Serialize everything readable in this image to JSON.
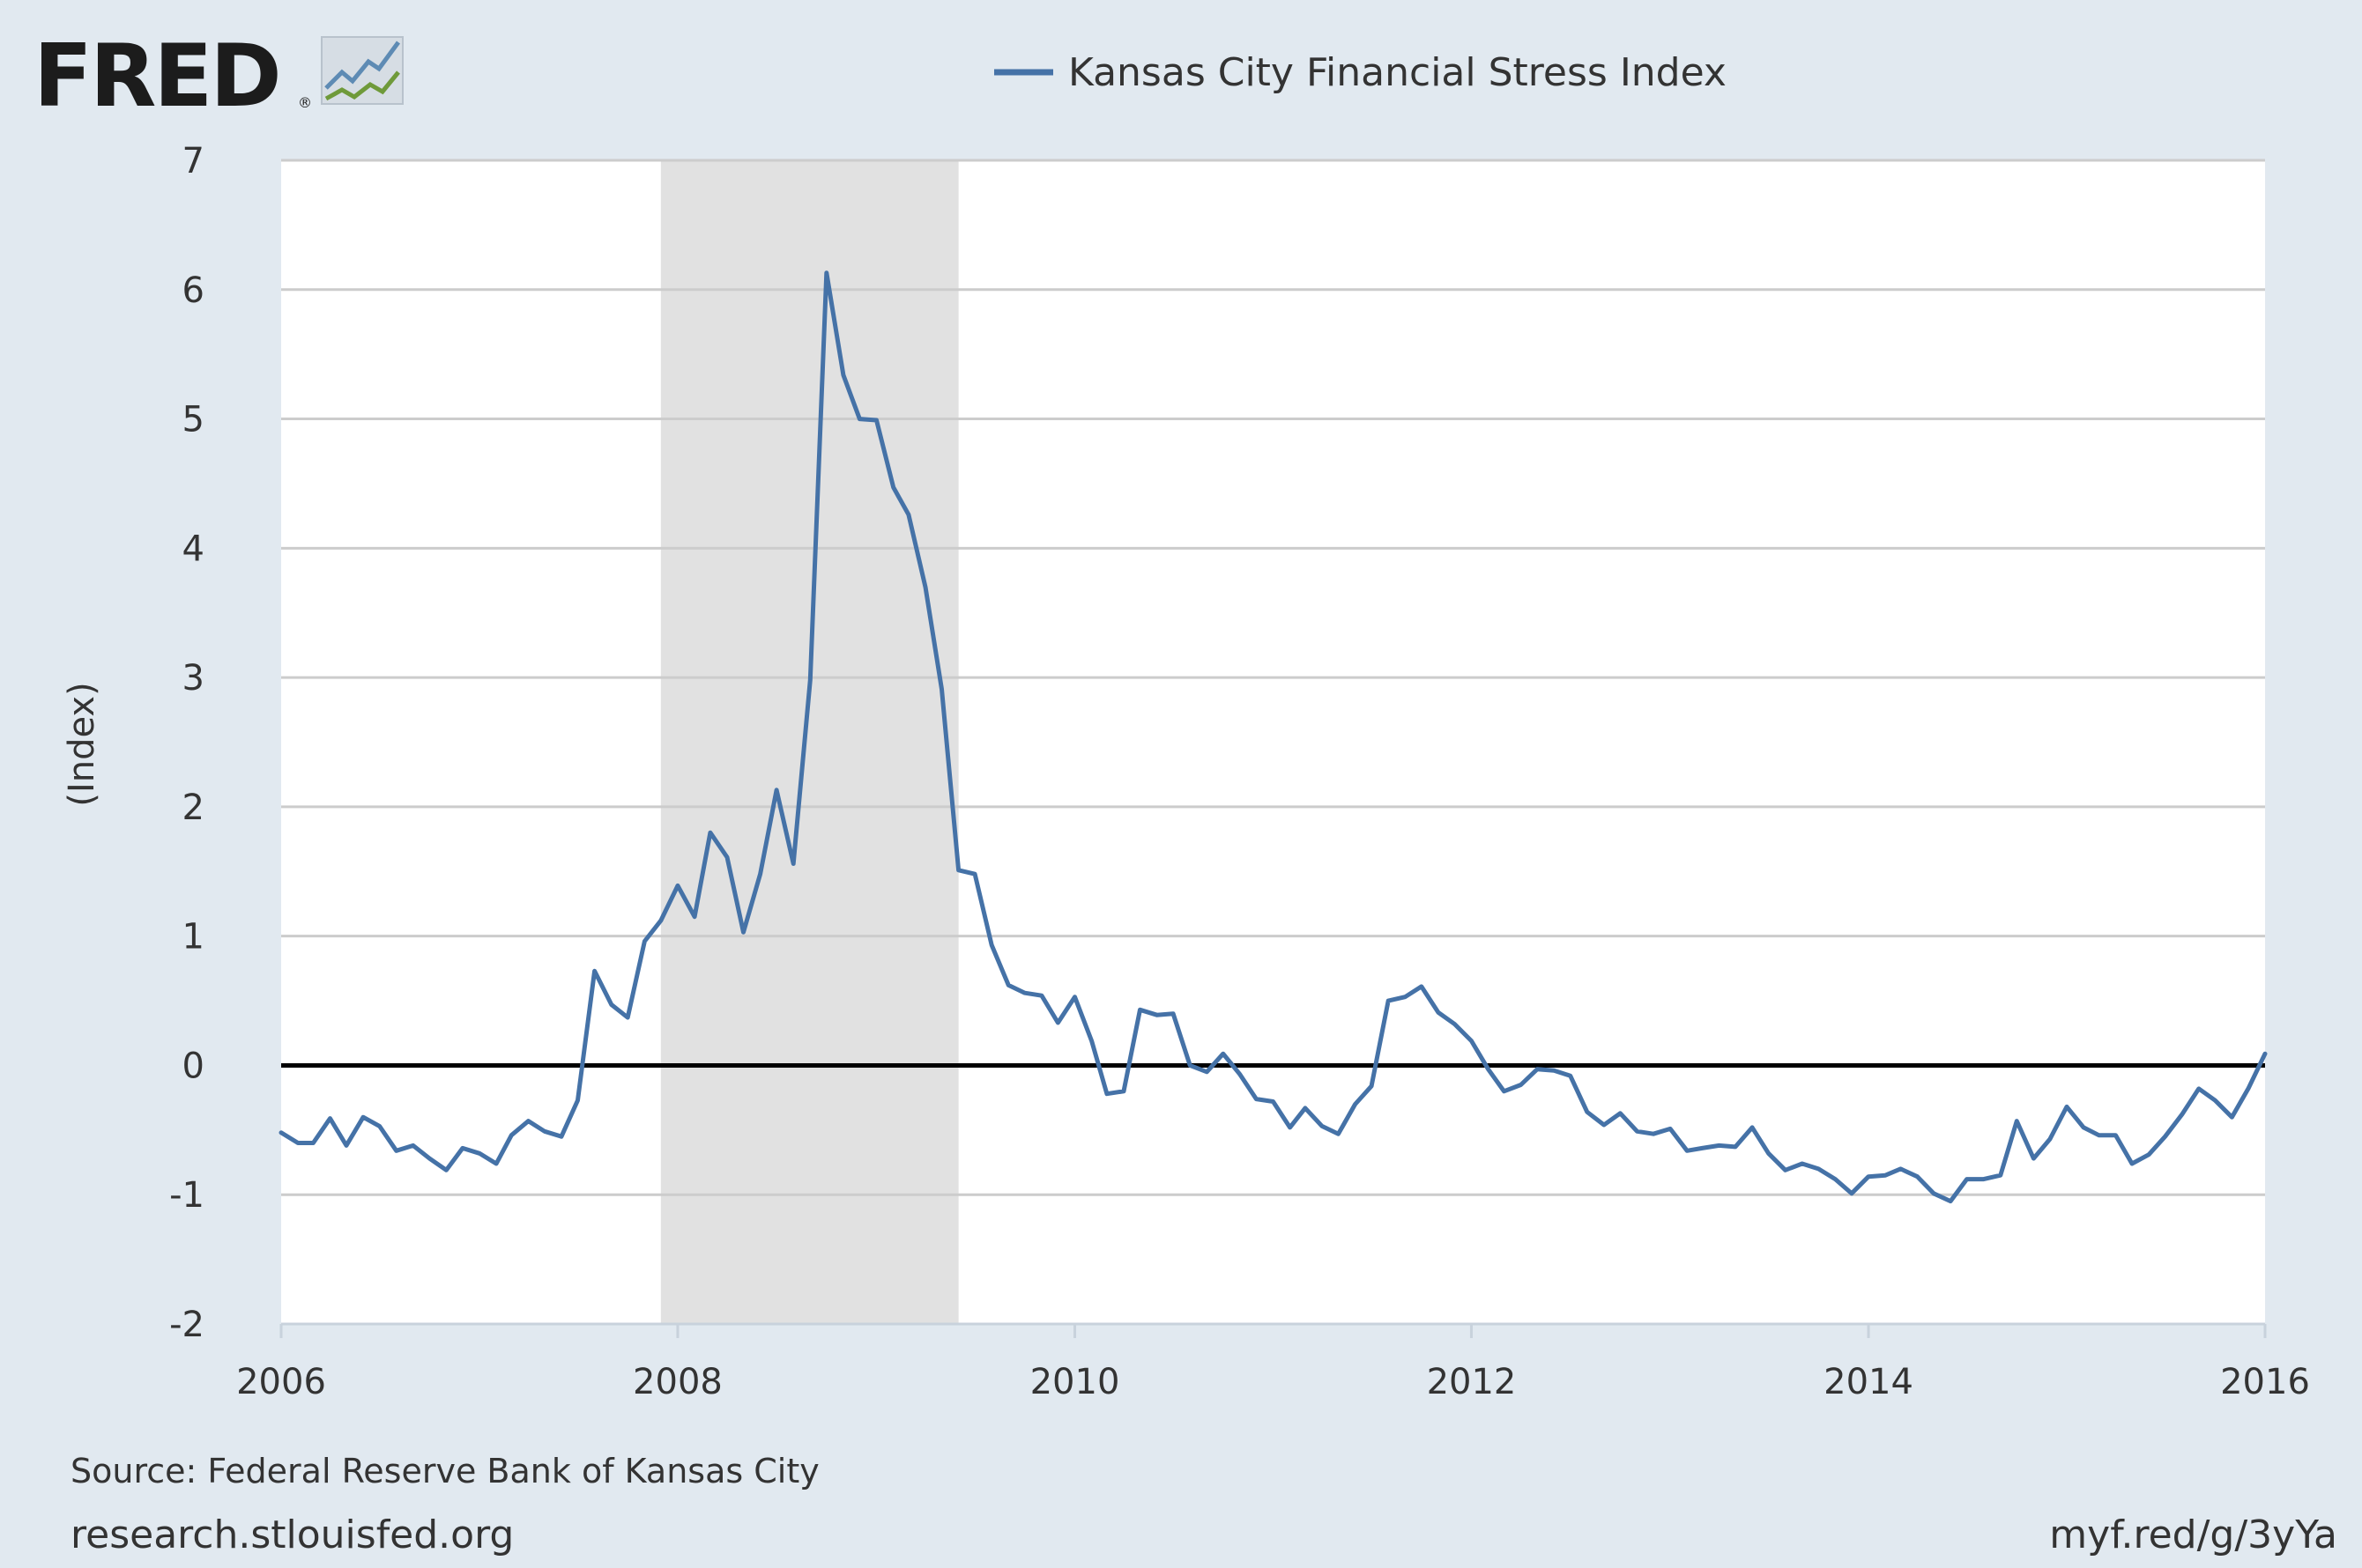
{
  "branding": {
    "logo_text": "FRED",
    "logo_mark": "®"
  },
  "legend": {
    "series_name": "Kansas City Financial Stress Index"
  },
  "footer": {
    "source": "Source: Federal Reserve Bank of Kansas City",
    "site": "research.stlouisfed.org",
    "short_link": "myf.red/g/3yYa"
  },
  "colors": {
    "background": "#e1e9f0",
    "plot_background": "#ffffff",
    "series": "#4572a7",
    "recession": "#e1e1e1",
    "grid": "#cccccc",
    "zero_line": "#000000",
    "logo_line_blue": "#5e8bb4",
    "logo_line_green": "#6f9a3a"
  },
  "chart_data": {
    "type": "line",
    "title": "",
    "xlabel": "",
    "ylabel": "(Index)",
    "xlim": [
      "2006-01-01",
      "2016-01-01"
    ],
    "ylim": [
      -2,
      7
    ],
    "x_ticks": [
      "2006",
      "2008",
      "2010",
      "2012",
      "2014",
      "2016"
    ],
    "y_ticks": [
      "-2",
      "-1",
      "0",
      "1",
      "2",
      "3",
      "4",
      "5",
      "6",
      "7"
    ],
    "grid": true,
    "legend_position": "top-center",
    "recession_band": {
      "start": "2007-12-01",
      "end": "2009-06-01"
    },
    "reference_line": {
      "y": 0
    },
    "series": [
      {
        "name": "Kansas City Financial Stress Index",
        "color": "#4572a7",
        "x": [
          "2006-01",
          "2006-02",
          "2006-03",
          "2006-04",
          "2006-05",
          "2006-06",
          "2006-07",
          "2006-08",
          "2006-09",
          "2006-10",
          "2006-11",
          "2006-12",
          "2007-01",
          "2007-02",
          "2007-03",
          "2007-04",
          "2007-05",
          "2007-06",
          "2007-07",
          "2007-08",
          "2007-09",
          "2007-10",
          "2007-11",
          "2007-12",
          "2008-01",
          "2008-02",
          "2008-03",
          "2008-04",
          "2008-05",
          "2008-06",
          "2008-07",
          "2008-08",
          "2008-09",
          "2008-10",
          "2008-11",
          "2008-12",
          "2009-01",
          "2009-02",
          "2009-03",
          "2009-04",
          "2009-05",
          "2009-06",
          "2009-07",
          "2009-08",
          "2009-09",
          "2009-10",
          "2009-11",
          "2009-12",
          "2010-01",
          "2010-02",
          "2010-03",
          "2010-04",
          "2010-05",
          "2010-06",
          "2010-07",
          "2010-08",
          "2010-09",
          "2010-10",
          "2010-11",
          "2010-12",
          "2011-01",
          "2011-02",
          "2011-03",
          "2011-04",
          "2011-05",
          "2011-06",
          "2011-07",
          "2011-08",
          "2011-09",
          "2011-10",
          "2011-11",
          "2011-12",
          "2012-01",
          "2012-02",
          "2012-03",
          "2012-04",
          "2012-05",
          "2012-06",
          "2012-07",
          "2012-08",
          "2012-09",
          "2012-10",
          "2012-11",
          "2012-12",
          "2013-01",
          "2013-02",
          "2013-03",
          "2013-04",
          "2013-05",
          "2013-06",
          "2013-07",
          "2013-08",
          "2013-09",
          "2013-10",
          "2013-11",
          "2013-12",
          "2014-01",
          "2014-02",
          "2014-03",
          "2014-04",
          "2014-05",
          "2014-06",
          "2014-07",
          "2014-08",
          "2014-09",
          "2014-10",
          "2014-11",
          "2014-12",
          "2015-01",
          "2015-02",
          "2015-03",
          "2015-04",
          "2015-05",
          "2015-06",
          "2015-07",
          "2015-08",
          "2015-09",
          "2015-10",
          "2015-11",
          "2015-12",
          "2016-01"
        ],
        "values": [
          -0.52,
          -0.6,
          -0.6,
          -0.41,
          -0.62,
          -0.4,
          -0.47,
          -0.66,
          -0.62,
          -0.72,
          -0.81,
          -0.64,
          -0.68,
          -0.76,
          -0.54,
          -0.43,
          -0.51,
          -0.55,
          -0.27,
          0.73,
          0.47,
          0.37,
          0.96,
          1.12,
          1.39,
          1.15,
          1.8,
          1.61,
          1.03,
          1.48,
          2.13,
          1.56,
          2.98,
          6.13,
          5.34,
          5.0,
          4.99,
          4.47,
          4.26,
          3.7,
          2.91,
          1.51,
          1.48,
          0.93,
          0.62,
          0.56,
          0.54,
          0.33,
          0.53,
          0.19,
          -0.22,
          -0.2,
          0.43,
          0.39,
          0.4,
          0.0,
          -0.05,
          0.09,
          -0.07,
          -0.26,
          -0.28,
          -0.48,
          -0.33,
          -0.47,
          -0.53,
          -0.3,
          -0.16,
          0.5,
          0.53,
          0.61,
          0.41,
          0.32,
          0.19,
          -0.03,
          -0.2,
          -0.15,
          -0.03,
          -0.04,
          -0.08,
          -0.36,
          -0.46,
          -0.37,
          -0.51,
          -0.53,
          -0.49,
          -0.66,
          -0.64,
          -0.62,
          -0.63,
          -0.48,
          -0.68,
          -0.81,
          -0.76,
          -0.8,
          -0.88,
          -0.99,
          -0.86,
          -0.85,
          -0.8,
          -0.86,
          -0.99,
          -1.05,
          -0.88,
          -0.88,
          -0.85,
          -0.43,
          -0.72,
          -0.57,
          -0.32,
          -0.48,
          -0.54,
          -0.54,
          -0.76,
          -0.69,
          -0.55,
          -0.38,
          -0.18,
          -0.27,
          -0.4,
          -0.18,
          0.09
        ]
      }
    ]
  }
}
